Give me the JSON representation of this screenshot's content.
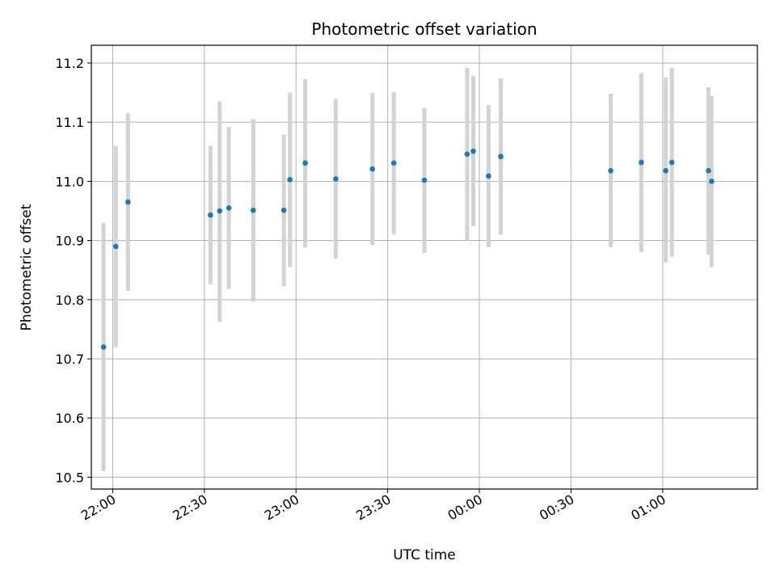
{
  "chart_data": {
    "type": "scatter",
    "title": "Photometric offset variation",
    "xlabel": "UTC time",
    "ylabel": "Photometric offset",
    "x_axis_kind": "time",
    "xlim": [
      "21:53",
      "01:31"
    ],
    "ylim": [
      10.48,
      11.23
    ],
    "x_ticks": [
      "22:00",
      "22:30",
      "23:00",
      "23:30",
      "00:00",
      "00:30",
      "01:00"
    ],
    "y_ticks": [
      10.5,
      10.6,
      10.7,
      10.8,
      10.9,
      11.0,
      11.1,
      11.2
    ],
    "grid": true,
    "errorbar_color": "#d3d3d3",
    "marker_color": "#1f77b4",
    "points": [
      {
        "x": "21:57",
        "y": 10.72,
        "ylow": 10.51,
        "yhigh": 10.93
      },
      {
        "x": "22:01",
        "y": 10.89,
        "ylow": 10.72,
        "yhigh": 11.06
      },
      {
        "x": "22:05",
        "y": 10.965,
        "ylow": 10.815,
        "yhigh": 11.115
      },
      {
        "x": "22:32",
        "y": 10.943,
        "ylow": 10.826,
        "yhigh": 11.06
      },
      {
        "x": "22:35",
        "y": 10.95,
        "ylow": 10.763,
        "yhigh": 11.135
      },
      {
        "x": "22:38",
        "y": 10.955,
        "ylow": 10.818,
        "yhigh": 11.092
      },
      {
        "x": "22:46",
        "y": 10.951,
        "ylow": 10.797,
        "yhigh": 11.105
      },
      {
        "x": "22:56",
        "y": 10.951,
        "ylow": 10.823,
        "yhigh": 11.079
      },
      {
        "x": "22:58",
        "y": 11.003,
        "ylow": 10.855,
        "yhigh": 11.15
      },
      {
        "x": "23:03",
        "y": 11.031,
        "ylow": 10.888,
        "yhigh": 11.173
      },
      {
        "x": "23:13",
        "y": 11.004,
        "ylow": 10.869,
        "yhigh": 11.139
      },
      {
        "x": "23:25",
        "y": 11.021,
        "ylow": 10.892,
        "yhigh": 11.15
      },
      {
        "x": "23:32",
        "y": 11.031,
        "ylow": 10.91,
        "yhigh": 11.151
      },
      {
        "x": "23:42",
        "y": 11.002,
        "ylow": 10.879,
        "yhigh": 11.124
      },
      {
        "x": "23:56",
        "y": 11.046,
        "ylow": 10.9,
        "yhigh": 11.192
      },
      {
        "x": "23:58",
        "y": 11.051,
        "ylow": 10.924,
        "yhigh": 11.178
      },
      {
        "x": "00:03",
        "y": 11.009,
        "ylow": 10.889,
        "yhigh": 11.129
      },
      {
        "x": "00:07",
        "y": 11.042,
        "ylow": 10.91,
        "yhigh": 11.174
      },
      {
        "x": "00:43",
        "y": 11.018,
        "ylow": 10.889,
        "yhigh": 11.148
      },
      {
        "x": "00:53",
        "y": 11.032,
        "ylow": 10.881,
        "yhigh": 11.183
      },
      {
        "x": "01:01",
        "y": 11.018,
        "ylow": 10.863,
        "yhigh": 11.175
      },
      {
        "x": "01:03",
        "y": 11.032,
        "ylow": 10.873,
        "yhigh": 11.192
      },
      {
        "x": "01:15",
        "y": 11.018,
        "ylow": 10.876,
        "yhigh": 11.159
      },
      {
        "x": "01:16",
        "y": 11.0,
        "ylow": 10.855,
        "yhigh": 11.144
      }
    ]
  }
}
